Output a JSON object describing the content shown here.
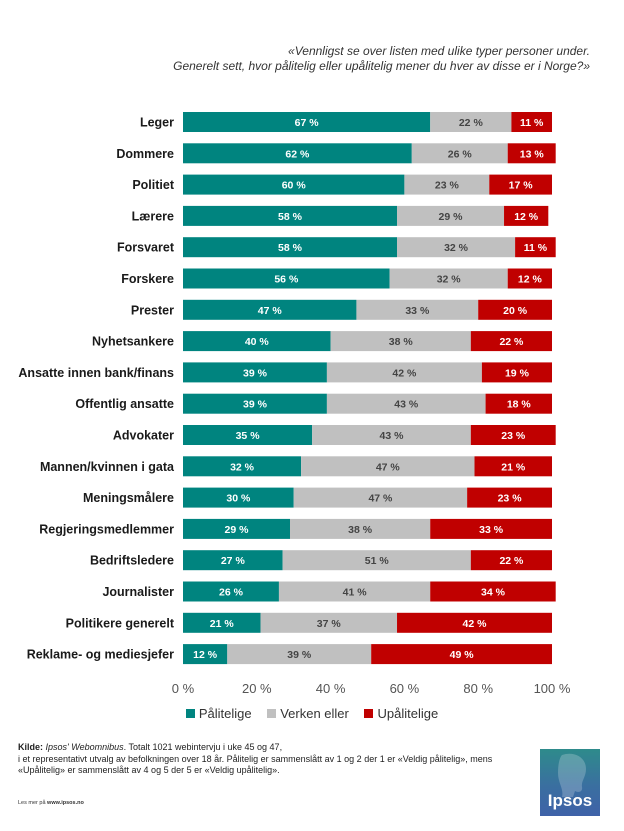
{
  "question": {
    "line1": "«Vennligst se over listen med ulike typer personer under.",
    "line2": "Generelt sett, hvor pålitelig eller upålitelig mener du hver av disse er i Norge?»"
  },
  "chart_data": {
    "type": "bar",
    "orientation": "horizontal",
    "stacked": true,
    "title": "«Vennligst se over listen med ulike typer personer under. Generelt sett, hvor pålitelig eller upålitelig mener du hver av disse er i Norge?»",
    "categories": [
      "Leger",
      "Dommere",
      "Politiet",
      "Lærere",
      "Forsvaret",
      "Forskere",
      "Prester",
      "Nyhetsankere",
      "Ansatte innen bank/finans",
      "Offentlig ansatte",
      "Advokater",
      "Mannen/kvinnen i gata",
      "Meningsmålere",
      "Regjeringsmedlemmer",
      "Bedriftsledere",
      "Journalister",
      "Politikere generelt",
      "Reklame- og mediesjefer"
    ],
    "series": [
      {
        "name": "Pålitelige",
        "color": "#00847f",
        "label_color": "#ffffff",
        "values": [
          67,
          62,
          60,
          58,
          58,
          56,
          47,
          40,
          39,
          39,
          35,
          32,
          30,
          29,
          27,
          26,
          21,
          12
        ]
      },
      {
        "name": "Verken eller",
        "color": "#c0c0c0",
        "label_color": "#444444",
        "values": [
          22,
          26,
          23,
          29,
          32,
          32,
          33,
          38,
          42,
          43,
          43,
          47,
          47,
          38,
          51,
          41,
          37,
          39
        ]
      },
      {
        "name": "Upålitelige",
        "color": "#c00000",
        "label_color": "#ffffff",
        "values": [
          11,
          13,
          17,
          12,
          11,
          12,
          20,
          22,
          19,
          18,
          23,
          21,
          23,
          33,
          22,
          34,
          42,
          49
        ]
      }
    ],
    "value_suffix": " %",
    "x_ticks": [
      "0 %",
      "20 %",
      "40 %",
      "60 %",
      "80 %",
      "100 %"
    ],
    "xlim": [
      0,
      100
    ],
    "grid": false,
    "legend_position": "bottom"
  },
  "legend": [
    "Pålitelige",
    "Verken eller",
    "Upålitelige"
  ],
  "source": {
    "kilde_label": "Kilde:",
    "kilde_name": "Ipsos' Webomnibus",
    "line1": ". Totalt 1021 webintervju i uke 45 og 47,",
    "line2": "i et representativt utvalg av befolkningen over 18 år. Pålitelig  er sammenslått av 1 og 2 der 1 er «Veldig pålitelig»,  mens",
    "line3": "«Upålitelig»  er sammenslått av 4 og 5 der 5 er «Veldig upålitelig»."
  },
  "read_more": {
    "prefix": "Les mer på ",
    "url": "www.ipsos.no"
  },
  "logo": {
    "text": "Ipsos"
  }
}
